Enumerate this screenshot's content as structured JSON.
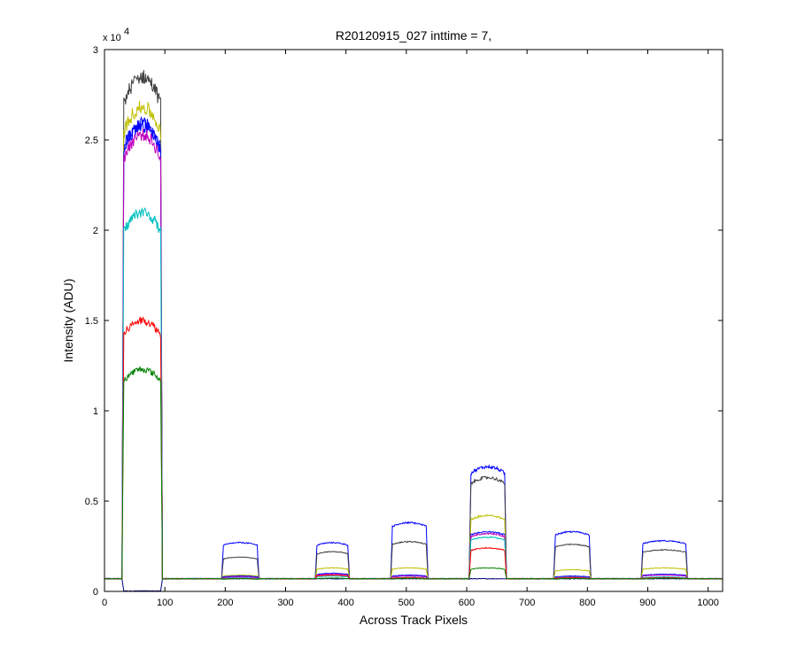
{
  "chart_data": {
    "type": "line",
    "title": "R20120915_027 inttime = 7,",
    "xlabel": "Across Track Pixels",
    "ylabel": "Intensity (ADU)",
    "y_multiplier": "x 10",
    "y_exponent": "4",
    "xlim": [
      0,
      1024
    ],
    "ylim": [
      0,
      30000
    ],
    "x_ticks": [
      0,
      100,
      200,
      300,
      400,
      500,
      600,
      700,
      800,
      900,
      1000
    ],
    "y_ticks": [
      0,
      5000,
      10000,
      15000,
      20000,
      25000,
      30000
    ],
    "y_tick_labels": [
      "0",
      "0.5",
      "1",
      "1.5",
      "2",
      "2.5",
      "3"
    ],
    "grid": false,
    "baseline": 700,
    "segments": [
      {
        "start": 30,
        "end": 95
      },
      {
        "start": 195,
        "end": 255
      },
      {
        "start": 350,
        "end": 405
      },
      {
        "start": 475,
        "end": 535
      },
      {
        "start": 605,
        "end": 665
      },
      {
        "start": 745,
        "end": 805
      },
      {
        "start": 890,
        "end": 965
      }
    ],
    "series": [
      {
        "color": "#000080",
        "plateaus": [
          25,
          0,
          0,
          0,
          0,
          0,
          0
        ]
      },
      {
        "color": "#0000ff",
        "plateaus": [
          25800,
          2700,
          2700,
          3800,
          6900,
          3300,
          2800
        ]
      },
      {
        "color": "#404040",
        "plateaus": [
          28500,
          1900,
          2200,
          2750,
          6300,
          2600,
          2300
        ]
      },
      {
        "color": "#bfbf00",
        "plateaus": [
          26800,
          900,
          1300,
          1300,
          4200,
          1200,
          1300
        ]
      },
      {
        "color": "#0000ff",
        "plateaus": [
          25900,
          850,
          1000,
          900,
          3300,
          850,
          950
        ]
      },
      {
        "color": "#bf00bf",
        "plateaus": [
          25300,
          800,
          950,
          850,
          3200,
          800,
          900
        ]
      },
      {
        "color": "#00bfbf",
        "plateaus": [
          21000,
          750,
          850,
          780,
          3000,
          780,
          800
        ]
      },
      {
        "color": "#ff0000",
        "plateaus": [
          15000,
          720,
          900,
          760,
          2400,
          760,
          760
        ]
      },
      {
        "color": "#008000",
        "plateaus": [
          12300,
          710,
          740,
          720,
          1300,
          720,
          730
        ]
      }
    ]
  }
}
